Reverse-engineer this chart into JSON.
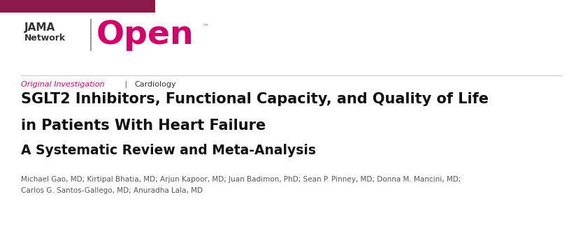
{
  "background_color": "#ffffff",
  "top_bar_color": "#8b1a4a",
  "jama_text_line1": "JAMA",
  "jama_text_line2": "Network",
  "jama_color": "#333333",
  "open_text": "Open",
  "open_color": "#d4006a",
  "tm_text": "™",
  "section_label": "Original Investigation",
  "section_label_color": "#e0006e",
  "section_separator": " | ",
  "section_category": "Cardiology",
  "section_category_color": "#333333",
  "title_line1": "SGLT2 Inhibitors, Functional Capacity, and Quality of Life",
  "title_line2": "in Patients With Heart Failure",
  "title_line3": "A Systematic Review and Meta-Analysis",
  "title_color": "#111111",
  "authors_line1": "Michael Gao, MD; Kirtipal Bhatia, MD; Arjun Kapoor, MD; Juan Badimon, PhD; Sean P. Pinney, MD; Donna M. Mancini, MD;",
  "authors_line2": "Carlos G. Santos-Gallego, MD; Anuradha Lala, MD",
  "authors_color": "#555555"
}
